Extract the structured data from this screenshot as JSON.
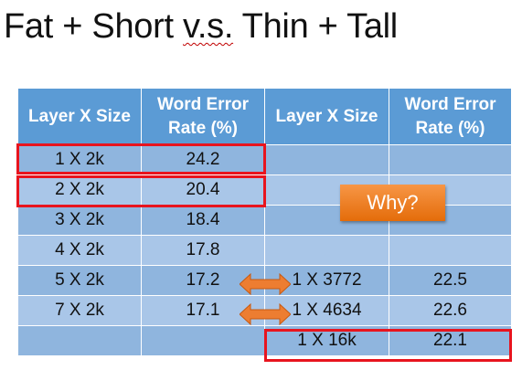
{
  "slide": {
    "title_part1": "Fat + Short ",
    "title_vs": "v.s.",
    "title_part2": " Thin + Tall"
  },
  "table": {
    "headers": [
      "Layer X Size",
      "Word Error Rate (%)",
      "Layer X Size",
      "Word Error Rate (%)"
    ],
    "rows": [
      [
        "1 X 2k",
        "24.2",
        "",
        ""
      ],
      [
        "2 X 2k",
        "20.4",
        "",
        ""
      ],
      [
        "3 X 2k",
        "18.4",
        "",
        ""
      ],
      [
        "4 X 2k",
        "17.8",
        "",
        ""
      ],
      [
        "5 X 2k",
        "17.2",
        "1 X 3772",
        "22.5"
      ],
      [
        "7 X 2k",
        "17.1",
        "1 X 4634",
        "22.6"
      ],
      [
        "",
        "",
        "1 X 16k",
        "22.1"
      ]
    ]
  },
  "callout": {
    "label": "Why?"
  },
  "colors": {
    "header_blue": "#5b9bd5",
    "row_dark": "#8fb5de",
    "row_light": "#a9c6e8",
    "highlight_red": "#e8141e",
    "callout_orange": "#ed7d31"
  }
}
